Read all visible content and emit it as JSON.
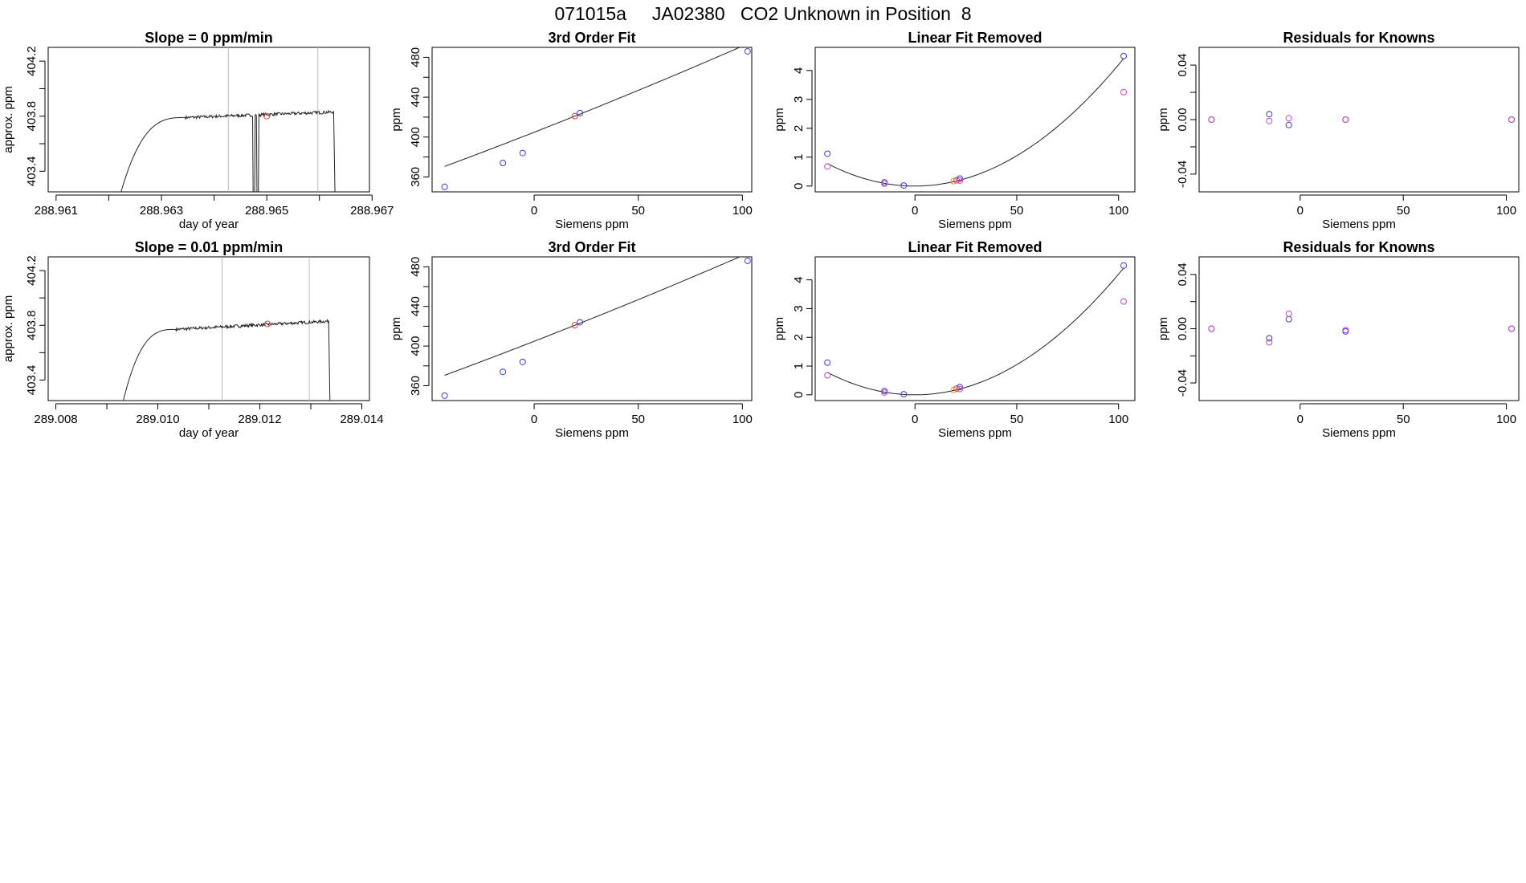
{
  "figure": {
    "title": "071015a     JA02380   CO2 Unknown in Position  8"
  },
  "colors": {
    "axis": "#000000",
    "line": "#222222",
    "vline": "#bbbbbb",
    "blue": "#3a3ae0",
    "red": "#e04040",
    "magenta": "#cc44cc",
    "orange": "#e89030"
  },
  "chart_data": [
    {
      "id": "time-1",
      "type": "line",
      "title": "Slope =  0  ppm/min",
      "xlabel": "day of year",
      "ylabel": "approx. ppm",
      "xlim": [
        288.96085,
        288.96695
      ],
      "ylim": [
        403.25,
        404.3
      ],
      "xticks": [
        288.961,
        288.962,
        288.963,
        288.964,
        288.965,
        288.966,
        288.967
      ],
      "xtick_labels": [
        "288.961",
        "",
        "288.963",
        "",
        "288.965",
        "",
        "288.967"
      ],
      "yticks": [
        403.4,
        403.6,
        403.8,
        404.0,
        404.2
      ],
      "ytick_labels": [
        "403.4",
        "",
        "403.8",
        "",
        "404.2"
      ],
      "vlines": [
        288.96427,
        288.96597
      ],
      "series": {
        "t_start": 288.96215,
        "t_rise_end": 288.96345,
        "t_end": 288.96627,
        "base": 403.13,
        "plateau": 403.79,
        "drift": 0.04,
        "drop_out": 288.9663,
        "glitches": [
          [
            288.964735,
            288.964775
          ],
          [
            288.96481,
            288.96485
          ]
        ]
      },
      "marker": {
        "x": 288.965,
        "y": 403.8,
        "color": "red"
      }
    },
    {
      "id": "cal-1",
      "type": "scatter",
      "title": "3rd Order Fit",
      "xlabel": "Siemens ppm",
      "ylabel": "ppm",
      "xlim": [
        -49,
        104.5
      ],
      "ylim": [
        345,
        490
      ],
      "xticks": [
        0,
        50,
        100
      ],
      "xtick_labels": [
        "0",
        "50",
        "100"
      ],
      "yticks": [
        360,
        380,
        400,
        420,
        440,
        460,
        480
      ],
      "ytick_labels": [
        "360",
        "",
        "400",
        "",
        "440",
        "",
        "480"
      ],
      "fit": {
        "from": -43,
        "to": 102.5,
        "a": 404.8,
        "b": 0.818,
        "c": 0.00046
      },
      "points": [
        {
          "x": -43,
          "y": 350,
          "color": "blue"
        },
        {
          "x": -15,
          "y": 374,
          "color": "blue"
        },
        {
          "x": -5.5,
          "y": 384,
          "color": "blue"
        },
        {
          "x": 19.5,
          "y": 421,
          "color": "red"
        },
        {
          "x": 22,
          "y": 424,
          "color": "blue"
        },
        {
          "x": 102.5,
          "y": 486,
          "color": "blue"
        }
      ]
    },
    {
      "id": "lin-1",
      "type": "scatter",
      "title": "Linear Fit Removed",
      "xlabel": "Siemens ppm",
      "ylabel": "ppm",
      "xlim": [
        -49,
        108
      ],
      "ylim": [
        -0.2,
        4.8
      ],
      "xticks": [
        0,
        50,
        100
      ],
      "xtick_labels": [
        "0",
        "50",
        "100"
      ],
      "yticks": [
        0,
        1,
        2,
        3,
        4
      ],
      "ytick_labels": [
        "0",
        "1",
        "2",
        "3",
        "4"
      ],
      "fit": {
        "from": -43,
        "to": 102.5,
        "a": 0,
        "b": 0,
        "c": 0.00042
      },
      "points": [
        {
          "x": -43,
          "y": 1.12,
          "color": "blue"
        },
        {
          "x": -15,
          "y": 0.13,
          "color": "blue"
        },
        {
          "x": -15,
          "y": 0.08,
          "color": "magenta"
        },
        {
          "x": -5.5,
          "y": 0.02,
          "color": "blue"
        },
        {
          "x": 19,
          "y": 0.17,
          "color": "orange"
        },
        {
          "x": 20.5,
          "y": 0.2,
          "color": "red"
        },
        {
          "x": 22,
          "y": 0.26,
          "color": "blue"
        },
        {
          "x": 22,
          "y": 0.19,
          "color": "magenta"
        },
        {
          "x": 102.5,
          "y": 4.5,
          "color": "blue"
        },
        {
          "x": -43,
          "y": 0.68,
          "color": "magenta"
        },
        {
          "x": 102.5,
          "y": 3.25,
          "color": "magenta"
        }
      ]
    },
    {
      "id": "res-1",
      "type": "scatter",
      "title": "Residuals for Knowns",
      "xlabel": "Siemens ppm",
      "ylabel": "ppm",
      "xlim": [
        -49,
        106
      ],
      "ylim": [
        -0.053,
        0.053
      ],
      "xticks": [
        0,
        50,
        100
      ],
      "xtick_labels": [
        "0",
        "50",
        "100"
      ],
      "yticks": [
        -0.04,
        -0.02,
        0,
        0.02,
        0.04
      ],
      "ytick_labels": [
        "-0.04",
        "",
        "0.00",
        "",
        "0.04"
      ],
      "points": [
        {
          "x": -43,
          "y": 0.0,
          "color": "blue"
        },
        {
          "x": -43,
          "y": 0.0,
          "color": "magenta"
        },
        {
          "x": -15,
          "y": 0.004,
          "color": "blue"
        },
        {
          "x": -15,
          "y": -0.001,
          "color": "magenta"
        },
        {
          "x": -5.5,
          "y": -0.004,
          "color": "blue"
        },
        {
          "x": -5.5,
          "y": 0.001,
          "color": "magenta"
        },
        {
          "x": 22,
          "y": 0.0,
          "color": "blue"
        },
        {
          "x": 22,
          "y": 0.0,
          "color": "magenta"
        },
        {
          "x": 102.5,
          "y": 0.0,
          "color": "blue"
        },
        {
          "x": 102.5,
          "y": 0.0,
          "color": "magenta"
        }
      ]
    },
    {
      "id": "time-2",
      "type": "line",
      "title": "Slope =  0.01  ppm/min",
      "xlabel": "day of year",
      "ylabel": "approx. ppm",
      "xlim": [
        289.00785,
        289.01415
      ],
      "ylim": [
        403.25,
        404.3
      ],
      "xticks": [
        289.008,
        289.009,
        289.01,
        289.011,
        289.012,
        289.013,
        289.014
      ],
      "xtick_labels": [
        "289.008",
        "",
        "289.010",
        "",
        "289.012",
        "",
        "289.014"
      ],
      "yticks": [
        403.4,
        403.6,
        403.8,
        404.0,
        404.2
      ],
      "ytick_labels": [
        "403.4",
        "",
        "403.8",
        "",
        "404.2"
      ],
      "vlines": [
        289.01126,
        289.01297
      ],
      "series": {
        "t_start": 289.00925,
        "t_rise_end": 289.01035,
        "t_end": 289.01335,
        "base": 403.13,
        "plateau": 403.77,
        "drift": 0.06,
        "drop_out": 289.01338,
        "glitches": []
      },
      "marker": {
        "x": 289.01215,
        "y": 403.81,
        "color": "red"
      }
    },
    {
      "id": "cal-2",
      "type": "scatter",
      "title": "3rd Order Fit",
      "xlabel": "Siemens ppm",
      "ylabel": "ppm",
      "xlim": [
        -49,
        104.5
      ],
      "ylim": [
        345,
        490
      ],
      "xticks": [
        0,
        50,
        100
      ],
      "xtick_labels": [
        "0",
        "50",
        "100"
      ],
      "yticks": [
        360,
        380,
        400,
        420,
        440,
        460,
        480
      ],
      "ytick_labels": [
        "360",
        "",
        "400",
        "",
        "440",
        "",
        "480"
      ],
      "fit": {
        "from": -43,
        "to": 102.5,
        "a": 404.8,
        "b": 0.818,
        "c": 0.00046
      },
      "points": [
        {
          "x": -43,
          "y": 350,
          "color": "blue"
        },
        {
          "x": -15,
          "y": 374,
          "color": "blue"
        },
        {
          "x": -5.5,
          "y": 384,
          "color": "blue"
        },
        {
          "x": 19.5,
          "y": 421,
          "color": "red"
        },
        {
          "x": 22,
          "y": 424,
          "color": "blue"
        },
        {
          "x": 102.5,
          "y": 486,
          "color": "blue"
        }
      ]
    },
    {
      "id": "lin-2",
      "type": "scatter",
      "title": "Linear Fit Removed",
      "xlabel": "Siemens ppm",
      "ylabel": "ppm",
      "xlim": [
        -49,
        108
      ],
      "ylim": [
        -0.2,
        4.8
      ],
      "xticks": [
        0,
        50,
        100
      ],
      "xtick_labels": [
        "0",
        "50",
        "100"
      ],
      "yticks": [
        0,
        1,
        2,
        3,
        4
      ],
      "ytick_labels": [
        "0",
        "1",
        "2",
        "3",
        "4"
      ],
      "fit": {
        "from": -43,
        "to": 102.5,
        "a": 0,
        "b": 0,
        "c": 0.00042
      },
      "points": [
        {
          "x": -43,
          "y": 1.12,
          "color": "blue"
        },
        {
          "x": -15,
          "y": 0.13,
          "color": "blue"
        },
        {
          "x": -15,
          "y": 0.08,
          "color": "magenta"
        },
        {
          "x": -5.5,
          "y": 0.02,
          "color": "blue"
        },
        {
          "x": 19,
          "y": 0.17,
          "color": "orange"
        },
        {
          "x": 20.5,
          "y": 0.22,
          "color": "red"
        },
        {
          "x": 22,
          "y": 0.27,
          "color": "blue"
        },
        {
          "x": 22,
          "y": 0.2,
          "color": "magenta"
        },
        {
          "x": 102.5,
          "y": 4.5,
          "color": "blue"
        },
        {
          "x": -43,
          "y": 0.68,
          "color": "magenta"
        },
        {
          "x": 102.5,
          "y": 3.25,
          "color": "magenta"
        }
      ]
    },
    {
      "id": "res-2",
      "type": "scatter",
      "title": "Residuals for Knowns",
      "xlabel": "Siemens ppm",
      "ylabel": "ppm",
      "xlim": [
        -49,
        106
      ],
      "ylim": [
        -0.053,
        0.053
      ],
      "xticks": [
        0,
        50,
        100
      ],
      "xtick_labels": [
        "0",
        "50",
        "100"
      ],
      "yticks": [
        -0.04,
        -0.02,
        0,
        0.02,
        0.04
      ],
      "ytick_labels": [
        "-0.04",
        "",
        "0.00",
        "",
        "0.04"
      ],
      "points": [
        {
          "x": -43,
          "y": 0.0,
          "color": "blue"
        },
        {
          "x": -43,
          "y": 0.0,
          "color": "magenta"
        },
        {
          "x": -15,
          "y": -0.007,
          "color": "blue"
        },
        {
          "x": -15,
          "y": -0.01,
          "color": "magenta"
        },
        {
          "x": -5.5,
          "y": 0.007,
          "color": "blue"
        },
        {
          "x": -5.5,
          "y": 0.011,
          "color": "magenta"
        },
        {
          "x": 22,
          "y": -0.002,
          "color": "blue"
        },
        {
          "x": 22,
          "y": -0.001,
          "color": "magenta"
        },
        {
          "x": 102.5,
          "y": 0.0,
          "color": "blue"
        },
        {
          "x": 102.5,
          "y": 0.0,
          "color": "magenta"
        }
      ]
    }
  ]
}
